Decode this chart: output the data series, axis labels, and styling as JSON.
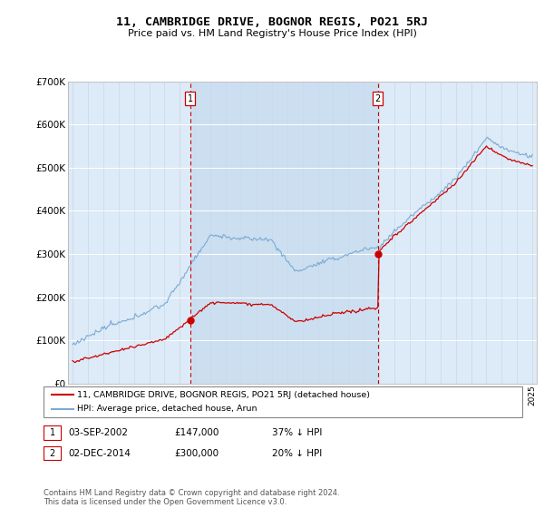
{
  "title": "11, CAMBRIDGE DRIVE, BOGNOR REGIS, PO21 5RJ",
  "subtitle": "Price paid vs. HM Land Registry's House Price Index (HPI)",
  "legend_line1": "11, CAMBRIDGE DRIVE, BOGNOR REGIS, PO21 5RJ (detached house)",
  "legend_line2": "HPI: Average price, detached house, Arun",
  "sale1_date": "03-SEP-2002",
  "sale1_price": "£147,000",
  "sale1_note": "37% ↓ HPI",
  "sale2_date": "02-DEC-2014",
  "sale2_price": "£300,000",
  "sale2_note": "20% ↓ HPI",
  "footer": "Contains HM Land Registry data © Crown copyright and database right 2024.\nThis data is licensed under the Open Government Licence v3.0.",
  "hpi_color": "#7aaad4",
  "sale_color": "#cc0000",
  "marker_box_color": "#cc0000",
  "plot_bg": "#ddeaf7",
  "shade_bg": "#ccdff0",
  "ylim": [
    0,
    700000
  ],
  "yticks": [
    0,
    100000,
    200000,
    300000,
    400000,
    500000,
    600000,
    700000
  ],
  "sale1_year": 2002.67,
  "sale1_value": 147000,
  "sale2_year": 2014.92,
  "sale2_value": 300000
}
